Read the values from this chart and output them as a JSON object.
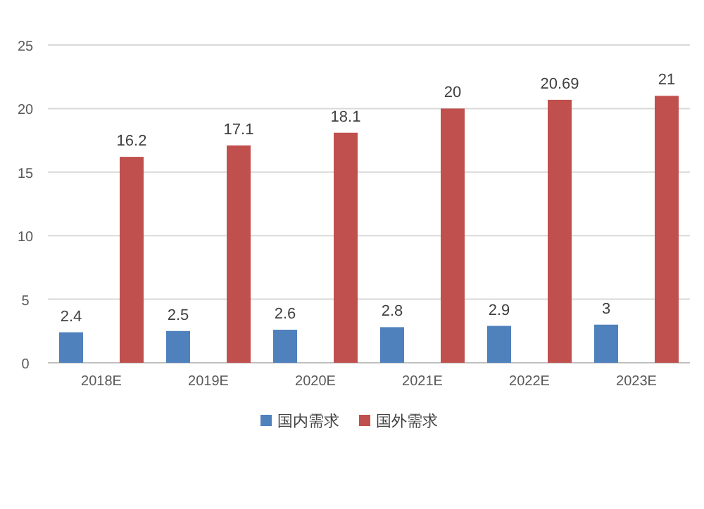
{
  "chart_data": {
    "type": "bar",
    "categories": [
      "2018E",
      "2019E",
      "2020E",
      "2021E",
      "2022E",
      "2023E"
    ],
    "series": [
      {
        "name": "国内需求",
        "color": "#4f81bd",
        "values": [
          2.4,
          2.5,
          2.6,
          2.8,
          2.9,
          3
        ]
      },
      {
        "name": "国外需求",
        "color": "#c0504d",
        "values": [
          16.2,
          17.1,
          18.1,
          20,
          20.69,
          21
        ]
      }
    ],
    "ylim": [
      0,
      25
    ],
    "yticks": [
      0,
      5,
      10,
      15,
      20,
      25
    ],
    "grid": "y",
    "data_labels": true,
    "legend": "bottom"
  }
}
